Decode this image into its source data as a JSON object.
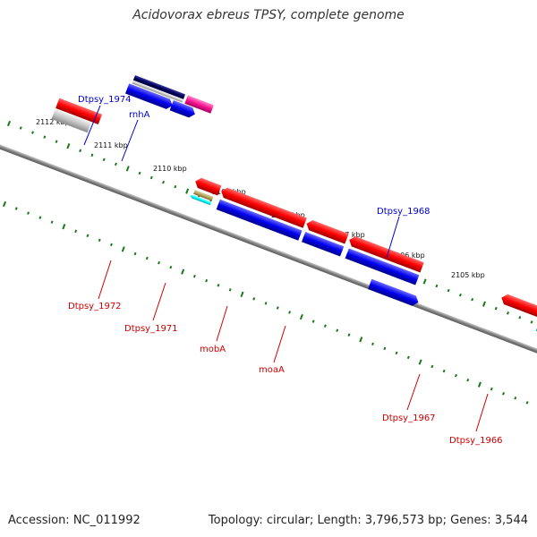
{
  "title": "Acidovorax ebreus TPSY, complete genome",
  "footer": {
    "accession": "Accession: NC_011992",
    "topology": "Topology: circular; Length: 3,796,573 bp; Genes: 3,544"
  },
  "colors": {
    "backbone": "#808080",
    "ticks": "#1a7a1a",
    "forward_label": "#0000cc",
    "reverse_label": "#cc0000"
  },
  "ticks": [
    "2112 kbp",
    "2111 kbp",
    "2110 kbp",
    "2109 kbp",
    "2108 kbp",
    "2107 kbp",
    "2106 kbp",
    "2105 kbp"
  ],
  "genes_labeled": [
    {
      "name": "Dtpsy_1974",
      "strand": "forward"
    },
    {
      "name": "rnhA",
      "strand": "forward"
    },
    {
      "name": "Dtpsy_1968",
      "strand": "forward"
    },
    {
      "name": "Dtpsy_1972",
      "strand": "reverse"
    },
    {
      "name": "Dtpsy_1971",
      "strand": "reverse"
    },
    {
      "name": "mobA",
      "strand": "reverse"
    },
    {
      "name": "moaA",
      "strand": "reverse"
    },
    {
      "name": "Dtpsy_1967",
      "strand": "reverse"
    },
    {
      "name": "Dtpsy_1966",
      "strand": "reverse"
    }
  ]
}
